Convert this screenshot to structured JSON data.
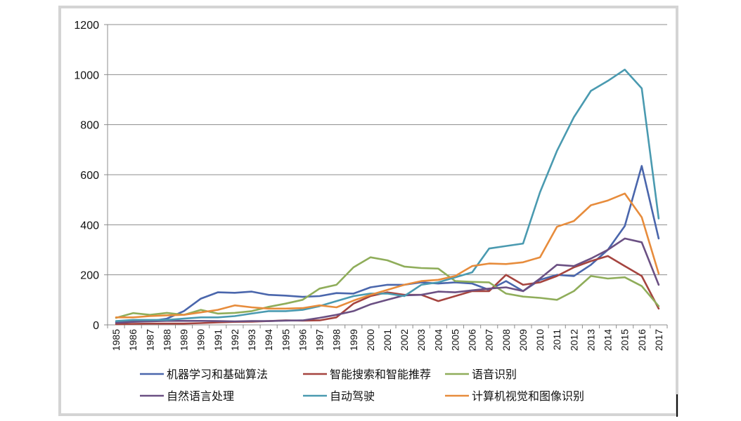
{
  "chart_data": {
    "type": "line",
    "title": "",
    "xlabel": "",
    "ylabel": "",
    "ylim": [
      0,
      1200
    ],
    "yticks": [
      0,
      200,
      400,
      600,
      800,
      1000,
      1200
    ],
    "grid": true,
    "legend_position": "bottom",
    "x": [
      "1985",
      "1986",
      "1987",
      "1988",
      "1989",
      "1990",
      "1991",
      "1992",
      "1993",
      "1994",
      "1995",
      "1996",
      "1997",
      "1998",
      "1999",
      "2000",
      "2001",
      "2002",
      "2003",
      "2004",
      "2005",
      "2006",
      "2007",
      "2008",
      "2009",
      "2010",
      "2011",
      "2012",
      "2013",
      "2014",
      "2015",
      "2016",
      "2017"
    ],
    "series": [
      {
        "name": "机器学习和基础算法",
        "color": "#4a66ac",
        "values": [
          10,
          15,
          15,
          25,
          55,
          105,
          130,
          128,
          133,
          120,
          117,
          112,
          115,
          127,
          125,
          150,
          160,
          160,
          170,
          165,
          170,
          165,
          140,
          175,
          135,
          180,
          200,
          195,
          240,
          300,
          395,
          635,
          345
        ]
      },
      {
        "name": "智能搜索和智能推荐",
        "color": "#a5443f",
        "values": [
          3,
          4,
          5,
          5,
          5,
          7,
          10,
          12,
          13,
          15,
          18,
          17,
          18,
          30,
          85,
          115,
          130,
          120,
          120,
          95,
          115,
          135,
          135,
          200,
          160,
          170,
          195,
          230,
          255,
          275,
          235,
          195,
          65
        ]
      },
      {
        "name": "语音识别",
        "color": "#8fad5a",
        "values": [
          28,
          47,
          40,
          48,
          40,
          60,
          45,
          48,
          55,
          72,
          85,
          100,
          145,
          160,
          230,
          270,
          258,
          233,
          227,
          225,
          175,
          172,
          170,
          125,
          113,
          108,
          100,
          135,
          195,
          185,
          190,
          155,
          75
        ]
      },
      {
        "name": "自然语言处理",
        "color": "#6b5083",
        "values": [
          8,
          12,
          14,
          16,
          16,
          16,
          15,
          14,
          15,
          15,
          17,
          18,
          28,
          40,
          55,
          82,
          100,
          118,
          120,
          133,
          130,
          138,
          145,
          150,
          135,
          185,
          240,
          235,
          265,
          300,
          345,
          330,
          160
        ]
      },
      {
        "name": "自动驾驶",
        "color": "#4a9ab0",
        "values": [
          15,
          20,
          20,
          20,
          25,
          30,
          30,
          35,
          45,
          55,
          55,
          60,
          75,
          95,
          115,
          125,
          125,
          115,
          160,
          170,
          190,
          210,
          305,
          315,
          325,
          530,
          695,
          830,
          935,
          975,
          1020,
          945,
          425
        ]
      },
      {
        "name": "计算机视觉和图像识别",
        "color": "#e78c3c",
        "values": [
          30,
          30,
          35,
          38,
          40,
          50,
          60,
          78,
          70,
          65,
          65,
          67,
          78,
          70,
          97,
          120,
          140,
          160,
          175,
          180,
          195,
          235,
          245,
          243,
          250,
          270,
          392,
          415,
          478,
          497,
          525,
          430,
          205
        ]
      }
    ]
  }
}
